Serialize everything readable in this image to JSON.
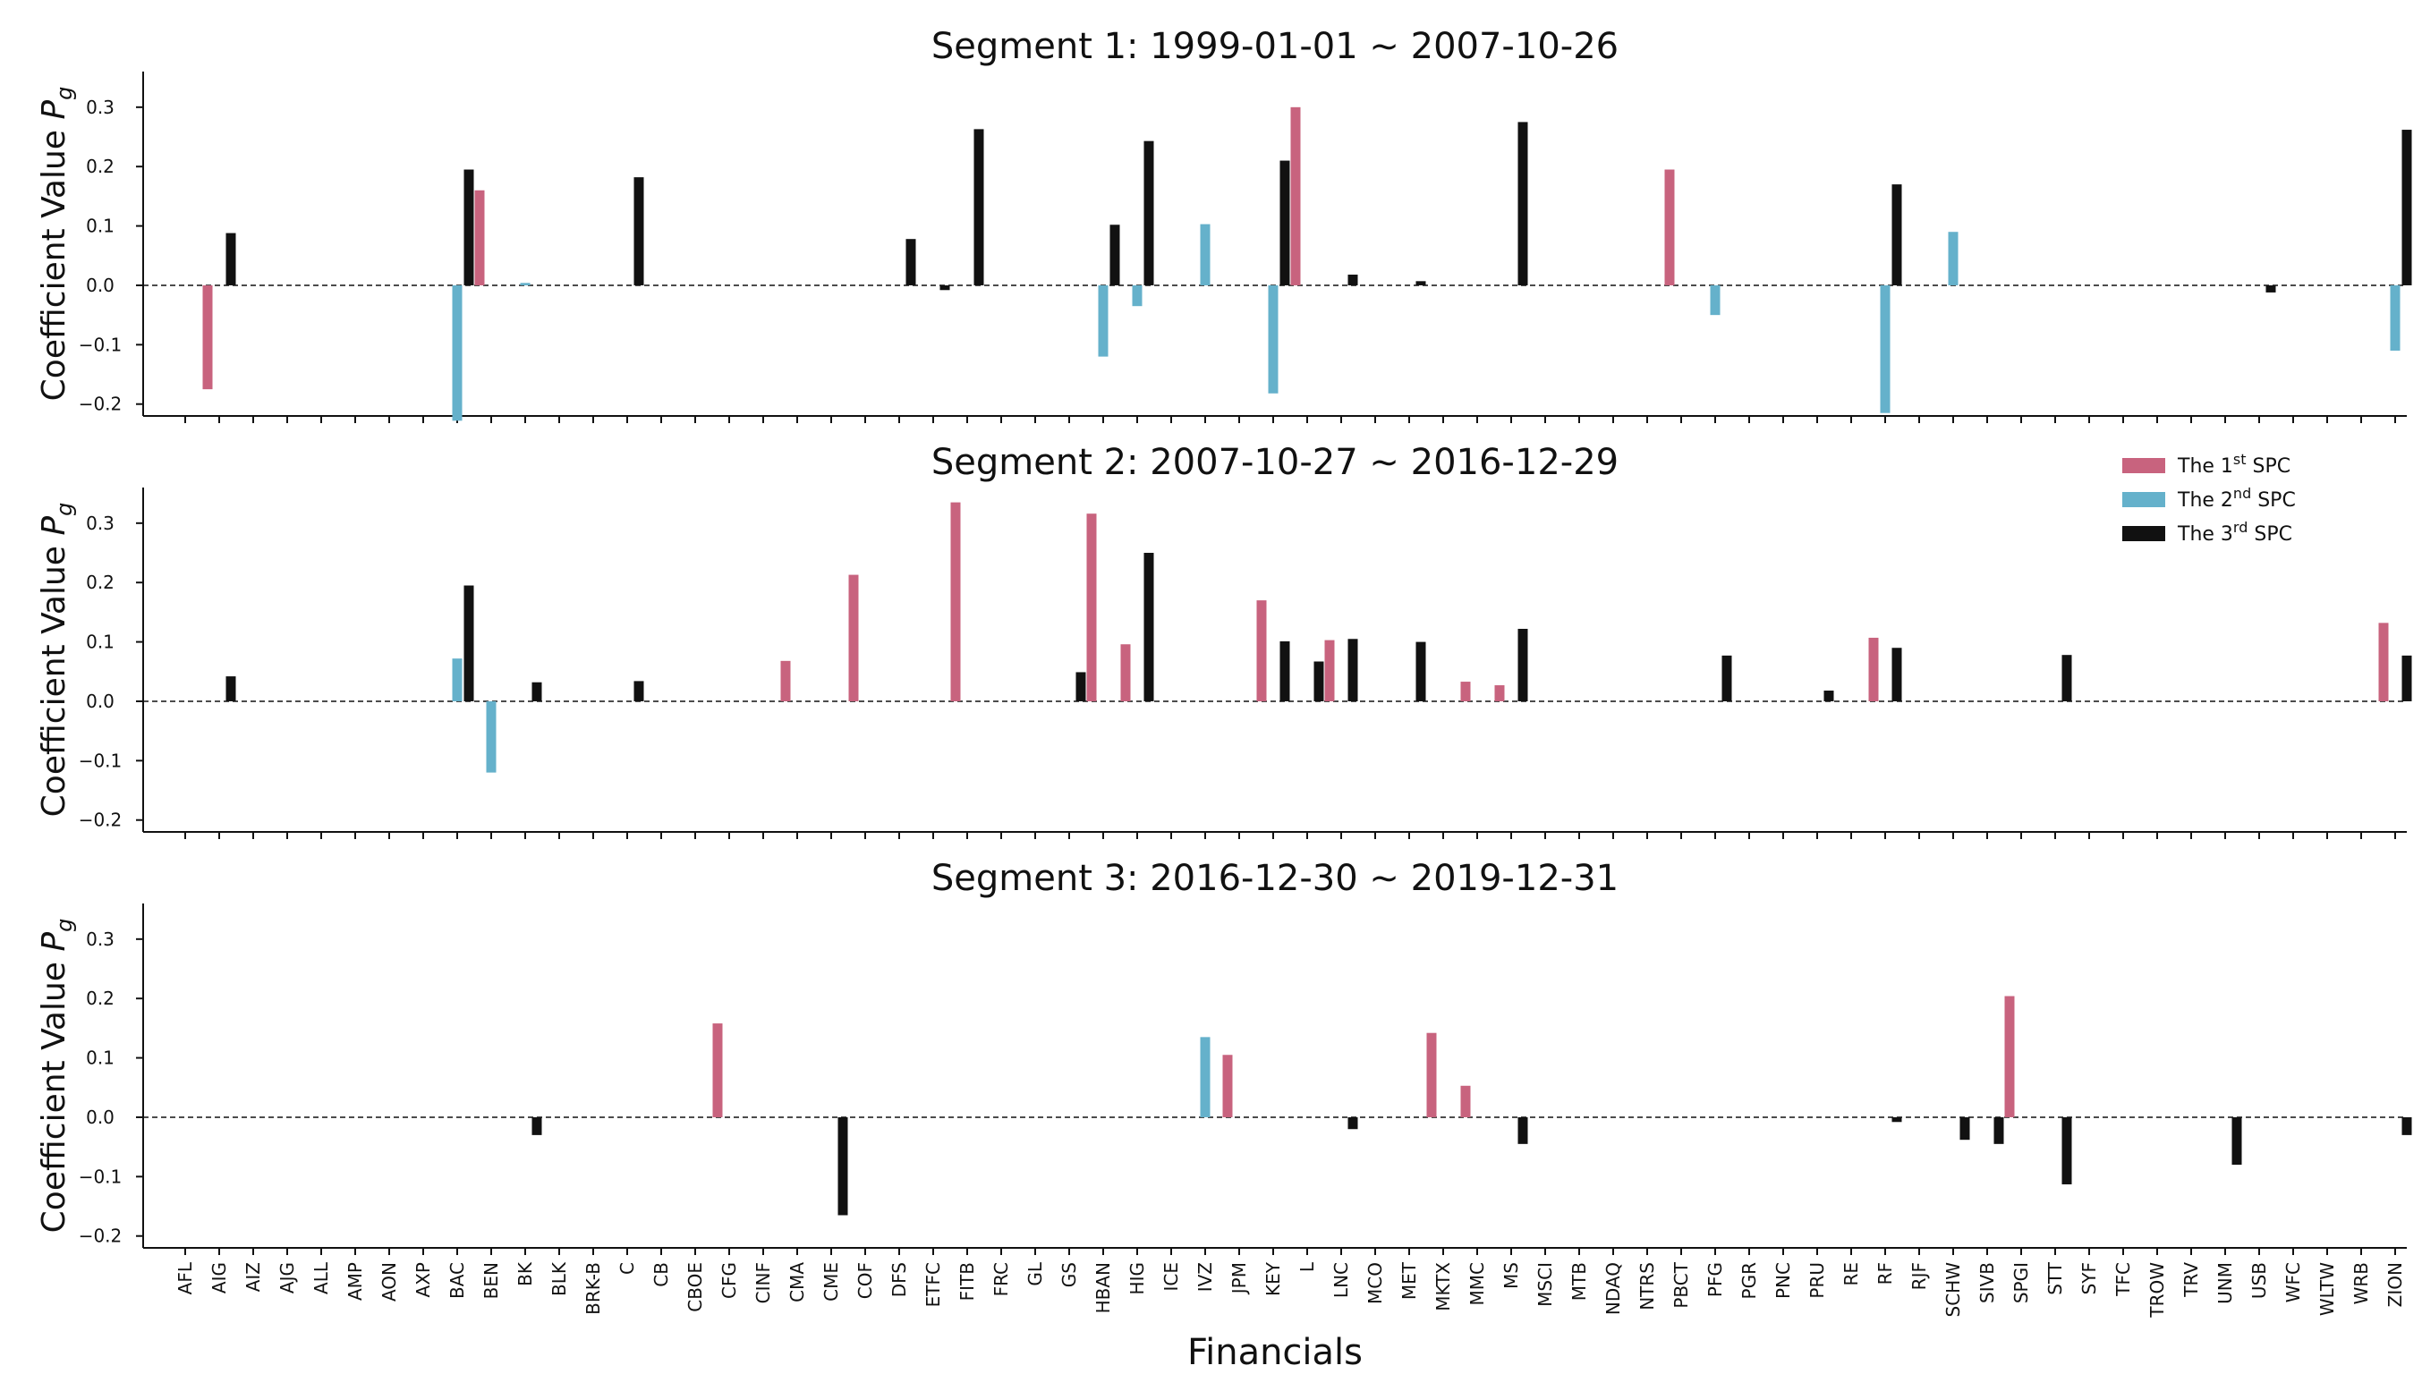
{
  "chart_data": {
    "type": "bar",
    "xlabel": "Financials",
    "ylabel_text": "Coefficient Value",
    "ylabel_symbol": "P",
    "ylabel_subscript": "g",
    "ylim": [
      -0.22,
      0.36
    ],
    "yticks": [
      -0.2,
      -0.1,
      0.0,
      0.1,
      0.2,
      0.3
    ],
    "ytick_labels": [
      "−0.2",
      "−0.1",
      "0.0",
      "0.1",
      "0.2",
      "0.3"
    ],
    "categories": [
      "AFL",
      "AIG",
      "AIZ",
      "AJG",
      "ALL",
      "AMP",
      "AON",
      "AXP",
      "BAC",
      "BEN",
      "BK",
      "BLK",
      "BRK-B",
      "C",
      "CB",
      "CBOE",
      "CFG",
      "CINF",
      "CMA",
      "CME",
      "COF",
      "DFS",
      "ETFC",
      "FITB",
      "FRC",
      "GL",
      "GS",
      "HBAN",
      "HIG",
      "ICE",
      "IVZ",
      "JPM",
      "KEY",
      "L",
      "LNC",
      "MCO",
      "MET",
      "MKTX",
      "MMC",
      "MS",
      "MSCI",
      "MTB",
      "NDAQ",
      "NTRS",
      "PBCT",
      "PFG",
      "PGR",
      "PNC",
      "PRU",
      "RE",
      "RF",
      "RJF",
      "SCHW",
      "SIVB",
      "SPGI",
      "STT",
      "SYF",
      "TFC",
      "TROW",
      "TRV",
      "UNM",
      "USB",
      "WFC",
      "WLTW",
      "WRB",
      "ZION"
    ],
    "legend": [
      {
        "prefix": "The 1",
        "sup": "st",
        "suffix": " SPC",
        "color": "#c8637e"
      },
      {
        "prefix": "The 2",
        "sup": "nd",
        "suffix": " SPC",
        "color": "#65b1cb"
      },
      {
        "prefix": "The 3",
        "sup": "rd",
        "suffix": " SPC",
        "color": "#111111"
      }
    ],
    "legend_position": "top-right of segment 2",
    "segments": [
      {
        "title": "Segment 1:  1999-01-01 ∼ 2007-10-26",
        "series": [
          {
            "name": "The 1st SPC",
            "values": {
              "AIG": -0.175,
              "BEN": 0.16,
              "L": 0.3,
              "PBCT": 0.195
            }
          },
          {
            "name": "The 2nd SPC",
            "values": {
              "BAC": -0.228,
              "BK": 0.004,
              "HBAN": -0.12,
              "HIG": -0.035,
              "IVZ": 0.103,
              "KEY": -0.182,
              "PFG": -0.05,
              "RF": -0.215,
              "SCHW": 0.09,
              "ZION": -0.11
            }
          },
          {
            "name": "The 3rd SPC",
            "values": {
              "AIG": 0.088,
              "BAC": 0.195,
              "C": 0.182,
              "DFS": 0.078,
              "ETFC": -0.008,
              "FITB": 0.263,
              "HBAN": 0.102,
              "HIG": 0.243,
              "KEY": 0.21,
              "LNC": 0.018,
              "MET": 0.007,
              "MS": 0.275,
              "RF": 0.17,
              "USB": -0.012,
              "ZION": 0.262
            }
          }
        ]
      },
      {
        "title": "Segment 2:  2007-10-27 ∼ 2016-12-29",
        "series": [
          {
            "name": "The 1st SPC",
            "values": {
              "CMA": 0.068,
              "COF": 0.213,
              "FITB": 0.335,
              "HBAN": 0.316,
              "HIG": 0.096,
              "KEY": 0.17,
              "LNC": 0.103,
              "MMC": 0.033,
              "MS": 0.027,
              "RF": 0.107,
              "ZION": 0.132
            }
          },
          {
            "name": "The 2nd SPC",
            "values": {
              "BAC": 0.072,
              "BEN": -0.12
            }
          },
          {
            "name": "The 3rd SPC",
            "values": {
              "AIG": 0.042,
              "BAC": 0.195,
              "BK": 0.032,
              "C": 0.034,
              "GS": 0.049,
              "HIG": 0.25,
              "KEY": 0.101,
              "LNC": 0.105,
              "MET": 0.1,
              "MS": 0.122,
              "L": 0.067,
              "PFG": 0.077,
              "PRU": 0.018,
              "RF": 0.09,
              "STT": 0.078,
              "ZION": 0.077
            }
          }
        ]
      },
      {
        "title": "Segment 3:  2016-12-30 ∼ 2019-12-31",
        "series": [
          {
            "name": "The 1st SPC",
            "values": {
              "CFG": 0.158,
              "JPM": 0.105,
              "MKTX": 0.142,
              "MMC": 0.053,
              "SPGI": 0.204
            }
          },
          {
            "name": "The 2nd SPC",
            "values": {
              "IVZ": 0.135
            }
          },
          {
            "name": "The 3rd SPC",
            "values": {
              "BK": -0.03,
              "CME": -0.165,
              "LNC": -0.02,
              "MS": -0.045,
              "RF": -0.008,
              "SCHW": -0.038,
              "SIVB": -0.045,
              "STT": -0.113,
              "UNM": -0.08,
              "ZION": -0.03
            }
          }
        ]
      }
    ]
  }
}
